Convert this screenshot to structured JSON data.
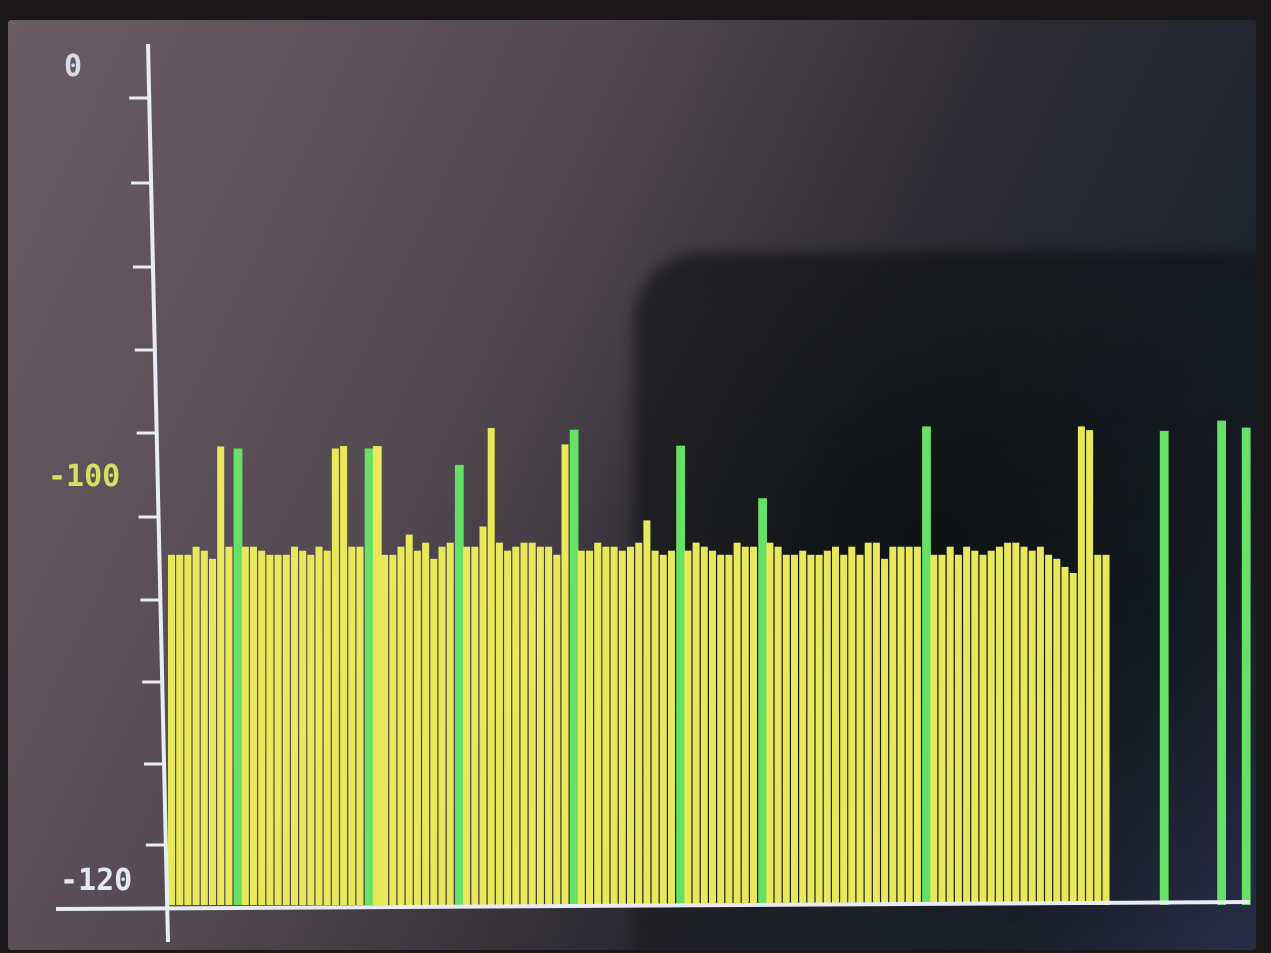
{
  "chart_data": {
    "type": "bar",
    "title": "",
    "xlabel": "",
    "ylabel": "",
    "ylim": [
      -120,
      0
    ],
    "y_ticks_labeled": [
      "0",
      "-100",
      "-120"
    ],
    "colors": {
      "normal_bar": "#e8e85a",
      "peak_bar": "#66e066",
      "axis": "#e8ecf4",
      "label_top": "#d8dcea",
      "label_mid": "#d6e060",
      "label_bottom": "#e4e8f2"
    },
    "series": [
      {
        "values": [
          -103.9,
          -103.9,
          -103.9,
          -103.5,
          -103.7,
          -104.1,
          -92.8,
          -103.5,
          -103.5,
          -103.5,
          -103.5,
          -103.7,
          -103.9,
          -103.9,
          -103.9,
          -103.5,
          -103.7,
          -103.9,
          -103.5,
          -103.7,
          -93.3,
          -92.7,
          -103.5,
          -103.5,
          -103.7,
          -103.9,
          -103.9,
          -103.9,
          -103.5,
          -102.9,
          -103.7,
          -103.3,
          -104.1,
          -103.5,
          -103.3,
          -103.3,
          -103.5,
          -103.5,
          -102.5,
          -88.3,
          -103.3,
          -103.7,
          -103.5,
          -103.3,
          -103.3,
          -103.5,
          -103.5,
          -103.9,
          -92.3,
          -103.7,
          -103.7,
          -103.7,
          -103.3,
          -103.5,
          -103.5,
          -103.7,
          -103.5,
          -103.3,
          -102.2,
          -103.7,
          -103.9,
          -103.7,
          -103.7,
          -103.7,
          -103.3,
          -103.5,
          -103.7,
          -103.9,
          -103.9,
          -103.3,
          -103.5,
          -103.5,
          -103.5,
          -103.3,
          -103.5,
          -103.9,
          -103.9,
          -103.7,
          -103.9,
          -103.9,
          -103.7,
          -103.5,
          -103.9,
          -103.5,
          -103.9,
          -103.3,
          -103.3,
          -104.1,
          -103.5,
          -103.5,
          -103.5,
          -103.5,
          -103.5,
          -103.9,
          -103.9,
          -103.5,
          -103.9,
          -103.5,
          -103.7,
          -103.9,
          -103.7,
          -103.5,
          -103.3,
          -103.3,
          -103.5,
          -103.7,
          -103.5,
          -103.9,
          -104.1,
          -104.5,
          -104.8,
          -87.9,
          -88.8,
          -103.9,
          -103.9
        ],
        "peaks": [
          8,
          24,
          35,
          49,
          62,
          72,
          92,
          121,
          128,
          131
        ]
      }
    ]
  },
  "overrides": {
    "peak_values": {
      "8": -93.3,
      "24": -93.3,
      "35": -97.3,
      "49": -88.7,
      "62": -92.6,
      "72": -101.1,
      "92": -87.9,
      "121": -89.0,
      "128": -86.5,
      "131": -88.2
    },
    "extra_bars": {
      "25": -92.7
    }
  }
}
